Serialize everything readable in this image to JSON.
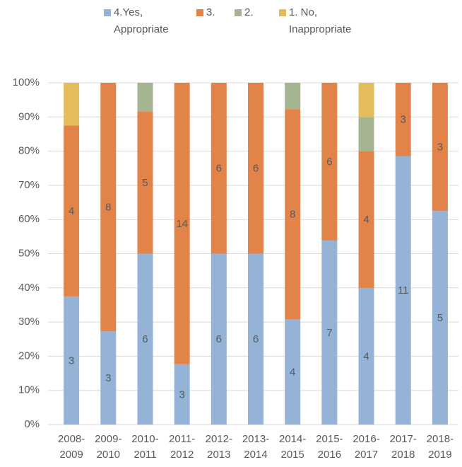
{
  "chart_data": {
    "type": "bar",
    "stacked": "percent",
    "categories": [
      "2008-2009",
      "2009-2010",
      "2010-2011",
      "2011-2012",
      "2012-2013",
      "2013-2014",
      "2014-2015",
      "2015-2016",
      "2016-2017",
      "2017-2018",
      "2018-2019"
    ],
    "series": [
      {
        "name": "4.Yes, Appropriate",
        "color": "#95b3d7",
        "data_labels": true,
        "values": [
          3,
          3,
          6,
          3,
          6,
          6,
          4,
          7,
          4,
          11,
          5
        ]
      },
      {
        "name": "3.",
        "color": "#e2844a",
        "data_labels": true,
        "values": [
          4,
          8,
          5,
          14,
          6,
          6,
          8,
          6,
          4,
          3,
          3
        ]
      },
      {
        "name": "2.",
        "color": "#a5b592",
        "data_labels": false,
        "values": [
          0,
          0,
          1,
          0,
          0,
          0,
          1,
          0,
          1,
          0,
          0
        ]
      },
      {
        "name": "1. No, Inappropriate",
        "color": "#e3bd5b",
        "data_labels": false,
        "values": [
          1,
          0,
          0,
          0,
          0,
          0,
          0,
          0,
          1,
          0,
          0
        ]
      }
    ],
    "ylim": [
      0,
      100
    ],
    "yticks": [
      {
        "value": 0,
        "label": "0%"
      },
      {
        "value": 10,
        "label": "10%"
      },
      {
        "value": 20,
        "label": "20%"
      },
      {
        "value": 30,
        "label": "30%"
      },
      {
        "value": 40,
        "label": "40%"
      },
      {
        "value": 50,
        "label": "50%"
      },
      {
        "value": 60,
        "label": "60%"
      },
      {
        "value": 70,
        "label": "70%"
      },
      {
        "value": 80,
        "label": "80%"
      },
      {
        "value": 90,
        "label": "90%"
      },
      {
        "value": 100,
        "label": "100%"
      }
    ],
    "grid": true,
    "legend": "top"
  }
}
